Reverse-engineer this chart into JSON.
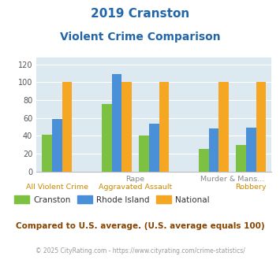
{
  "title_line1": "2019 Cranston",
  "title_line2": "Violent Crime Comparison",
  "cranston": [
    41,
    76,
    40,
    25,
    30
  ],
  "rhode_island": [
    59,
    109,
    54,
    48,
    49
  ],
  "national": [
    100,
    100,
    100,
    100,
    100
  ],
  "bar_colors": [
    "#7dc142",
    "#4a90d9",
    "#f5a623"
  ],
  "legend_labels": [
    "Cranston",
    "Rhode Island",
    "National"
  ],
  "ylim": [
    0,
    128
  ],
  "yticks": [
    0,
    20,
    40,
    60,
    80,
    100,
    120
  ],
  "plot_bg": "#dce9f0",
  "title_color": "#2266aa",
  "footer_text": "Compared to U.S. average. (U.S. average equals 100)",
  "copyright_text": "© 2025 CityRating.com - https://www.cityrating.com/crime-statistics/",
  "footer_color": "#884400",
  "copyright_color": "#999999",
  "label_top_color": "#888888",
  "label_bot_color": "#cc8800",
  "grid_color": "#ffffff",
  "spine_color": "#bbbbbb"
}
